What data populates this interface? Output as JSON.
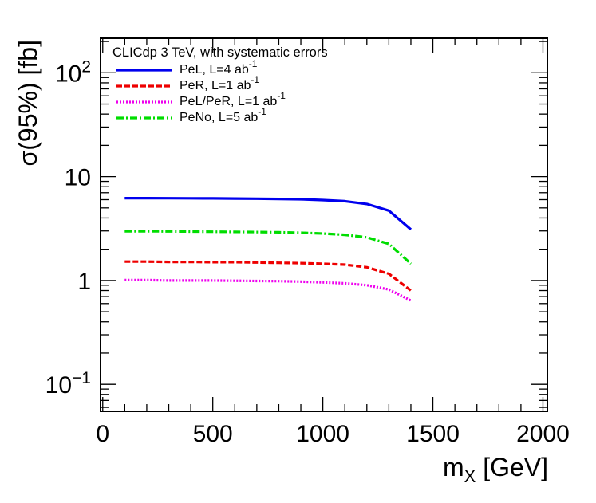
{
  "chart_data": {
    "type": "line",
    "title": "",
    "legend_title": "CLICdp 3 TeV, with systematic errors",
    "legend_position": "top-left",
    "xlabel": {
      "main": "m",
      "sub": "X",
      "unit": " [GeV]"
    },
    "ylabel": "σ(95%) [fb]",
    "xlim": [
      -10,
      2020
    ],
    "ylim": [
      0.055,
      215
    ],
    "yscale": "log",
    "x_ticks": [
      {
        "value": 0,
        "label": "0"
      },
      {
        "value": 500,
        "label": "500"
      },
      {
        "value": 1000,
        "label": "1000"
      },
      {
        "value": 1500,
        "label": "1500"
      },
      {
        "value": 2000,
        "label": "2000"
      }
    ],
    "y_ticks": [
      {
        "value": 0.1,
        "base": "10",
        "exp": "−1"
      },
      {
        "value": 1,
        "base": "1",
        "exp": ""
      },
      {
        "value": 10,
        "base": "10",
        "exp": ""
      },
      {
        "value": 100,
        "base": "10",
        "exp": "2"
      }
    ],
    "series": [
      {
        "name": "PeL, L=4 ab",
        "sup": "-1",
        "color": "#0000ee",
        "style": "solid",
        "x": [
          100,
          200,
          300,
          400,
          500,
          600,
          700,
          800,
          900,
          1000,
          1100,
          1200,
          1300,
          1400
        ],
        "y": [
          6.2,
          6.2,
          6.19,
          6.18,
          6.17,
          6.15,
          6.13,
          6.1,
          6.05,
          5.95,
          5.8,
          5.45,
          4.7,
          3.1
        ]
      },
      {
        "name": "PeR, L=1 ab",
        "sup": "-1",
        "color": "#ee0000",
        "style": "dashed",
        "x": [
          100,
          200,
          300,
          400,
          500,
          600,
          700,
          800,
          900,
          1000,
          1100,
          1200,
          1300,
          1400
        ],
        "y": [
          1.52,
          1.52,
          1.51,
          1.51,
          1.5,
          1.5,
          1.49,
          1.48,
          1.47,
          1.45,
          1.42,
          1.34,
          1.16,
          0.8
        ]
      },
      {
        "name": "PeL/PeR, L=1 ab",
        "sup": "-1",
        "color": "#ee00ee",
        "style": "dotted",
        "x": [
          100,
          200,
          300,
          400,
          500,
          600,
          700,
          800,
          900,
          1000,
          1100,
          1200,
          1300,
          1400
        ],
        "y": [
          1.01,
          1.01,
          1.0,
          1.0,
          1.0,
          0.995,
          0.99,
          0.985,
          0.975,
          0.96,
          0.94,
          0.9,
          0.82,
          0.64
        ]
      },
      {
        "name": "PeNo, L=5 ab",
        "sup": "-1",
        "color": "#00dd00",
        "style": "dashdot",
        "x": [
          100,
          200,
          300,
          400,
          500,
          600,
          700,
          800,
          900,
          1000,
          1100,
          1200,
          1300,
          1400
        ],
        "y": [
          2.98,
          2.98,
          2.97,
          2.96,
          2.95,
          2.94,
          2.93,
          2.91,
          2.88,
          2.83,
          2.75,
          2.6,
          2.25,
          1.45
        ]
      }
    ]
  }
}
